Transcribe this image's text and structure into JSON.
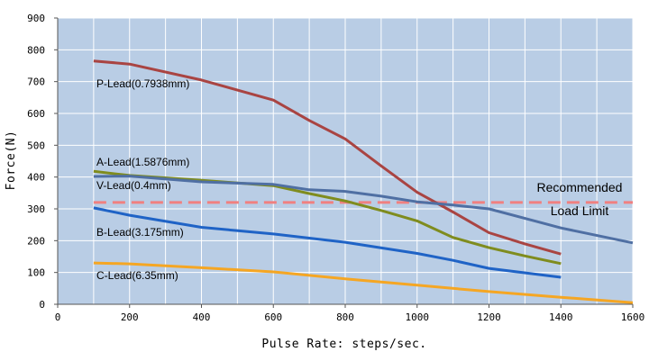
{
  "chart_data": {
    "type": "line",
    "title": "",
    "xlabel": "Pulse Rate: steps/sec.",
    "ylabel": "Force(N)",
    "xlim": [
      0,
      1600
    ],
    "ylim": [
      0,
      900
    ],
    "x_ticks": [
      "0",
      "200",
      "400",
      "600",
      "800",
      "1000",
      "1200",
      "1400",
      "1600"
    ],
    "y_ticks": [
      "0",
      "100",
      "200",
      "300",
      "400",
      "500",
      "600",
      "700",
      "800",
      "900"
    ],
    "grid": true,
    "colors": {
      "plot_bg": "#b9cde5",
      "grid": "#ffffff",
      "P-Lead": "#a94442",
      "A-Lead": "#7f8c1e",
      "V-Lead": "#4f6fa3",
      "B-Lead": "#1f63c6",
      "C-Lead": "#f5a623",
      "limit": "#f08080"
    },
    "series": [
      {
        "name": "P-Lead(0.7938mm)",
        "x": [
          100,
          200,
          400,
          600,
          700,
          800,
          900,
          1000,
          1100,
          1200,
          1300,
          1400
        ],
        "y": [
          765,
          755,
          705,
          642,
          578,
          520,
          435,
          352,
          290,
          225,
          190,
          158
        ]
      },
      {
        "name": "A-Lead(1.5876mm)",
        "x": [
          100,
          200,
          400,
          600,
          700,
          800,
          900,
          1000,
          1100,
          1200,
          1300,
          1400
        ],
        "y": [
          418,
          405,
          390,
          373,
          348,
          325,
          295,
          262,
          210,
          178,
          152,
          128
        ]
      },
      {
        "name": "V-Lead(0.4mm)",
        "x": [
          100,
          200,
          400,
          600,
          700,
          800,
          900,
          1000,
          1100,
          1200,
          1300,
          1400,
          1600
        ],
        "y": [
          402,
          403,
          385,
          377,
          360,
          355,
          340,
          322,
          312,
          300,
          270,
          240,
          193
        ]
      },
      {
        "name": "B-Lead(3.175mm)",
        "x": [
          100,
          200,
          400,
          600,
          800,
          1000,
          1100,
          1200,
          1400
        ],
        "y": [
          303,
          280,
          242,
          221,
          195,
          160,
          138,
          113,
          85
        ]
      },
      {
        "name": "C-Lead(6.35mm)",
        "x": [
          100,
          200,
          400,
          600,
          800,
          1000,
          1200,
          1400,
          1600
        ],
        "y": [
          130,
          127,
          115,
          102,
          80,
          60,
          40,
          22,
          5
        ]
      }
    ],
    "reference_line": {
      "y": 320,
      "x_range": [
        100,
        1600
      ],
      "label_line1": "Recommended",
      "label_line2": "Load Limit"
    }
  }
}
